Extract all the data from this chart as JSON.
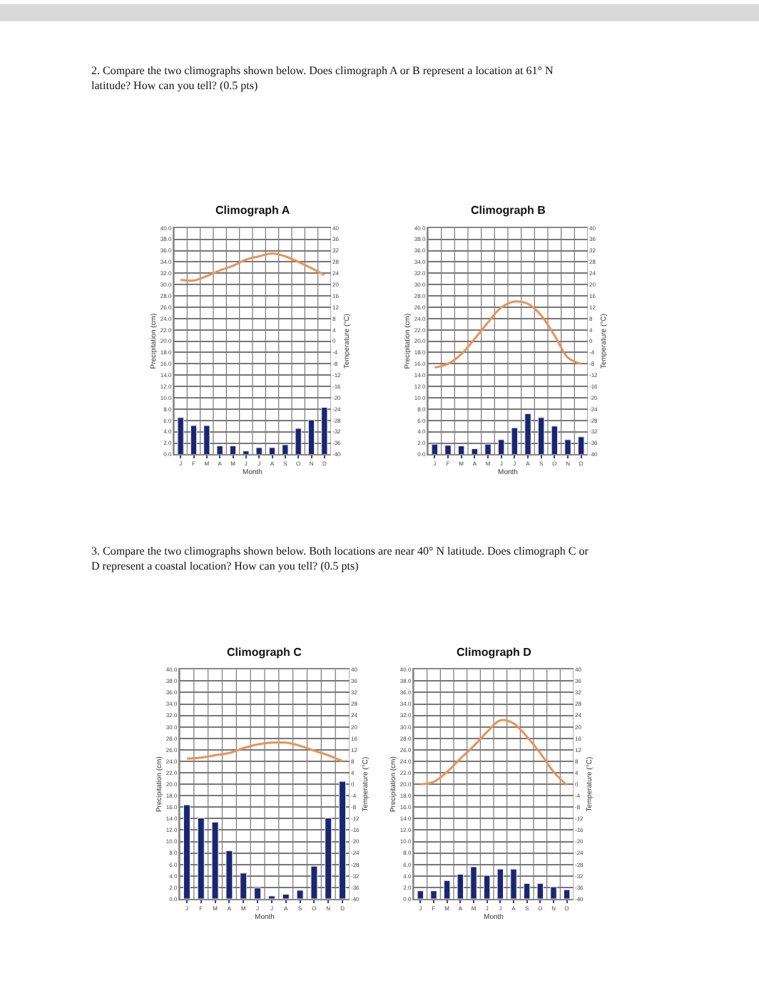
{
  "chart_data": [
    {
      "type": "bar",
      "title": "Climograph A",
      "xlabel": "Month",
      "ylabel": "Precipitation (cm)",
      "y2label": "Temperature (°C)",
      "annotations": [
        "2. Compare the two climographs shown below. Does climograph A or B represent a location at 61° N latitude? How can you tell? (0.5 pts)"
      ],
      "categories": [
        "J",
        "F",
        "M",
        "A",
        "M",
        "J",
        "J",
        "A",
        "S",
        "O",
        "N",
        "D"
      ],
      "series": [
        {
          "color": "#1c2570",
          "values": [
            6.5,
            5.1,
            5.1,
            1.5,
            1.5,
            0.6,
            1.2,
            1.2,
            1.7,
            4.6,
            6.1,
            8.3
          ]
        },
        {
          "type": "line",
          "axis": "y2",
          "color": "#e8935a",
          "values": [
            21.7,
            21.4,
            23,
            25,
            26.6,
            28.8,
            30,
            31,
            30,
            28,
            25.8,
            23.3
          ]
        }
      ],
      "ylim": [
        0,
        40
      ],
      "yticks": [
        {
          "value": 0,
          "label": "0.0"
        },
        {
          "value": 2,
          "label": "2.0"
        },
        {
          "value": 4,
          "label": "4.0"
        },
        {
          "value": 6,
          "label": "6.0"
        },
        {
          "value": 8,
          "label": "8.0"
        },
        {
          "value": 10,
          "label": "10.0"
        },
        {
          "value": 12,
          "label": "12.0"
        },
        {
          "value": 14,
          "label": "14.0"
        },
        {
          "value": 16,
          "label": "16.0"
        },
        {
          "value": 18,
          "label": "18.0"
        },
        {
          "value": 20,
          "label": "20.0"
        },
        {
          "value": 22,
          "label": "22.0"
        },
        {
          "value": 24,
          "label": "24.0"
        },
        {
          "value": 26,
          "label": "26.0"
        },
        {
          "value": 28,
          "label": "28.0"
        },
        {
          "value": 30,
          "label": "30.0"
        },
        {
          "value": 32,
          "label": "32.0"
        },
        {
          "value": 34,
          "label": "34.0"
        },
        {
          "value": 36,
          "label": "36.0"
        },
        {
          "value": 38,
          "label": "38.0"
        },
        {
          "value": 40,
          "label": "40.0"
        }
      ],
      "y2lim": [
        -40,
        40
      ],
      "y2ticks": [
        -40,
        -36,
        -32,
        -28,
        -24,
        -20,
        -16,
        -12,
        -8,
        -4,
        0,
        4,
        8,
        12,
        16,
        20,
        24,
        28,
        32,
        36,
        40
      ],
      "grid": true
    },
    {
      "type": "bar",
      "title": "Climograph B",
      "xlabel": "Month",
      "ylabel": "Precipitation (cm)",
      "y2label": "Temperature (°C)",
      "categories": [
        "J",
        "F",
        "M",
        "A",
        "M",
        "J",
        "J",
        "A",
        "S",
        "O",
        "N",
        "D"
      ],
      "series": [
        {
          "color": "#1c2570",
          "values": [
            1.8,
            1.6,
            1.5,
            1.0,
            1.8,
            2.6,
            4.7,
            7.2,
            6.5,
            5.0,
            2.6,
            3.1
          ]
        },
        {
          "type": "line",
          "axis": "y2",
          "color": "#e8935a",
          "values": [
            -9.3,
            -8,
            -4.6,
            0.8,
            6.6,
            11.9,
            14,
            13.2,
            9.1,
            2,
            -5.8,
            -8
          ]
        }
      ],
      "ylim": [
        0,
        40
      ],
      "yticks": [
        {
          "value": 0,
          "label": "0.0"
        },
        {
          "value": 2,
          "label": "2.0"
        },
        {
          "value": 4,
          "label": "4.0"
        },
        {
          "value": 6,
          "label": "6.0"
        },
        {
          "value": 8,
          "label": "8.0"
        },
        {
          "value": 10,
          "label": "10.0"
        },
        {
          "value": 12,
          "label": "12.0"
        },
        {
          "value": 14,
          "label": "14.0"
        },
        {
          "value": 16,
          "label": "16.0"
        },
        {
          "value": 18,
          "label": "18.0"
        },
        {
          "value": 20,
          "label": "20.0"
        },
        {
          "value": 22,
          "label": "22.0"
        },
        {
          "value": 24,
          "label": "24.0"
        },
        {
          "value": 26,
          "label": "26.0"
        },
        {
          "value": 28,
          "label": "28.0"
        },
        {
          "value": 30,
          "label": "30.0"
        },
        {
          "value": 32,
          "label": "32.0"
        },
        {
          "value": 34,
          "label": "34.0"
        },
        {
          "value": 36,
          "label": "36.0"
        },
        {
          "value": 38,
          "label": "38.0"
        },
        {
          "value": 40,
          "label": "40.0"
        }
      ],
      "y2lim": [
        -40,
        40
      ],
      "y2ticks": [
        -40,
        -36,
        -32,
        -28,
        -24,
        -20,
        -16,
        -12,
        -8,
        -4,
        0,
        4,
        8,
        12,
        16,
        20,
        24,
        28,
        32,
        36,
        40
      ],
      "grid": true
    },
    {
      "type": "bar",
      "title": "Climograph C",
      "xlabel": "Month",
      "ylabel": "Precipitation (cm)",
      "y2label": "Temperature (°C)",
      "annotations": [
        "3. Compare the two climographs shown below. Both locations are near 40° N latitude. Does climograph C or D represent a coastal location? How can you tell? (0.5 pts)"
      ],
      "categories": [
        "J",
        "F",
        "M",
        "A",
        "M",
        "J",
        "J",
        "A",
        "S",
        "O",
        "N",
        "D"
      ],
      "series": [
        {
          "color": "#1c2570",
          "values": [
            16.4,
            14.1,
            13.4,
            8.4,
            4.5,
            1.9,
            0.5,
            0.8,
            1.5,
            5.7,
            14.1,
            20.5
          ]
        },
        {
          "type": "line",
          "axis": "y2",
          "color": "#e8935a",
          "values": [
            8.9,
            9.3,
            10.1,
            10.9,
            12.6,
            13.9,
            14.5,
            14.5,
            13.4,
            11.7,
            10.1,
            8.0
          ]
        }
      ],
      "ylim": [
        0,
        40
      ],
      "yticks": [
        {
          "value": 0,
          "label": "0.0"
        },
        {
          "value": 2,
          "label": "2.0"
        },
        {
          "value": 4,
          "label": "4.0"
        },
        {
          "value": 6,
          "label": "6.0"
        },
        {
          "value": 8,
          "label": "8.0"
        },
        {
          "value": 10,
          "label": "10.0"
        },
        {
          "value": 12,
          "label": "12.0"
        },
        {
          "value": 14,
          "label": "14.0"
        },
        {
          "value": 16,
          "label": "16.0"
        },
        {
          "value": 18,
          "label": "18.0"
        },
        {
          "value": 20,
          "label": "20.0"
        },
        {
          "value": 22,
          "label": "22.0"
        },
        {
          "value": 24,
          "label": "24.0"
        },
        {
          "value": 26,
          "label": "26.0"
        },
        {
          "value": 28,
          "label": "28.0"
        },
        {
          "value": 30,
          "label": "30.0"
        },
        {
          "value": 32,
          "label": "32.0"
        },
        {
          "value": 34,
          "label": "34.0"
        },
        {
          "value": 36,
          "label": "36.0"
        },
        {
          "value": 38,
          "label": "38.0"
        },
        {
          "value": 40,
          "label": "40.0"
        }
      ],
      "y2lim": [
        -40,
        40
      ],
      "y2ticks": [
        -40,
        -36,
        -32,
        -28,
        -24,
        -20,
        -16,
        -12,
        -8,
        -4,
        0,
        4,
        8,
        12,
        16,
        20,
        24,
        28,
        32,
        36,
        40
      ],
      "grid": true
    },
    {
      "type": "bar",
      "title": "Climograph D",
      "xlabel": "Month",
      "ylabel": "Precipitation (cm)",
      "y2label": "Temperature (°C)",
      "categories": [
        "J",
        "F",
        "M",
        "A",
        "M",
        "J",
        "J",
        "A",
        "S",
        "O",
        "N",
        "D"
      ],
      "series": [
        {
          "color": "#1c2570",
          "values": [
            1.4,
            1.4,
            3.2,
            4.3,
            5.6,
            4.1,
            5.2,
            5.2,
            2.7,
            2.7,
            2.1,
            1.6
          ]
        },
        {
          "type": "line",
          "axis": "y2",
          "color": "#e8935a",
          "values": [
            0,
            0.8,
            4.3,
            8.9,
            13.3,
            18.2,
            22.3,
            21.2,
            16.6,
            10.9,
            4.3,
            -0.3
          ]
        }
      ],
      "ylim": [
        0,
        40
      ],
      "yticks": [
        {
          "value": 0,
          "label": "0.0"
        },
        {
          "value": 2,
          "label": "2.0"
        },
        {
          "value": 4,
          "label": "4.0"
        },
        {
          "value": 6,
          "label": "6.0"
        },
        {
          "value": 8,
          "label": "8.0"
        },
        {
          "value": 10,
          "label": "10.0"
        },
        {
          "value": 12,
          "label": "12.0"
        },
        {
          "value": 14,
          "label": "14.0"
        },
        {
          "value": 16,
          "label": "16.0"
        },
        {
          "value": 18,
          "label": "18.0"
        },
        {
          "value": 20,
          "label": "20.0"
        },
        {
          "value": 22,
          "label": "22.0"
        },
        {
          "value": 24,
          "label": "24.0"
        },
        {
          "value": 26,
          "label": "26.0"
        },
        {
          "value": 28,
          "label": "28.0"
        },
        {
          "value": 30,
          "label": "30.0"
        },
        {
          "value": 32,
          "label": "32.0"
        },
        {
          "value": 34,
          "label": "34.0"
        },
        {
          "value": 36,
          "label": "36.0"
        },
        {
          "value": 38,
          "label": "38.0"
        },
        {
          "value": 40,
          "label": "40.0"
        }
      ],
      "y2lim": [
        -40,
        40
      ],
      "y2ticks": [
        -40,
        -36,
        -32,
        -28,
        -24,
        -20,
        -16,
        -12,
        -8,
        -4,
        0,
        4,
        8,
        12,
        16,
        20,
        24,
        28,
        32,
        36,
        40
      ],
      "grid": true
    }
  ]
}
